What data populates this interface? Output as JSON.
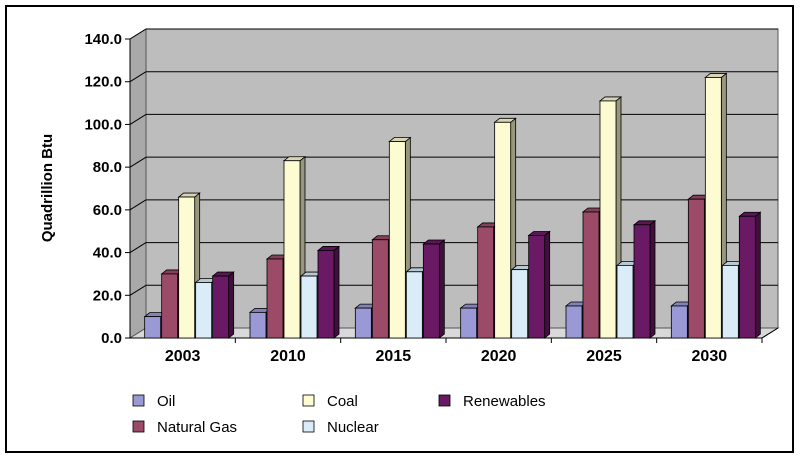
{
  "chart_data": {
    "type": "bar",
    "title": "",
    "xlabel": "",
    "ylabel": "Quadrillion Btu",
    "ylim": [
      0,
      140
    ],
    "yticks": [
      "0.0",
      "20.0",
      "40.0",
      "60.0",
      "80.0",
      "100.0",
      "120.0",
      "140.0"
    ],
    "categories": [
      "2003",
      "2010",
      "2015",
      "2020",
      "2025",
      "2030"
    ],
    "grid": true,
    "legend_position": "bottom",
    "series": [
      {
        "name": "Oil",
        "color": "#9a99d6",
        "values": [
          10,
          12,
          14,
          14,
          15,
          15
        ]
      },
      {
        "name": "Natural Gas",
        "color": "#9b4b67",
        "values": [
          30,
          37,
          46,
          52,
          59,
          65
        ]
      },
      {
        "name": "Coal",
        "color": "#fdfbd2",
        "values": [
          66,
          83,
          92,
          101,
          111,
          122
        ]
      },
      {
        "name": "Nuclear",
        "color": "#d9ecf8",
        "values": [
          26,
          29,
          31,
          32,
          34,
          34
        ]
      },
      {
        "name": "Renewables",
        "color": "#6a1a64",
        "values": [
          29,
          41,
          44,
          48,
          53,
          57
        ]
      }
    ]
  }
}
